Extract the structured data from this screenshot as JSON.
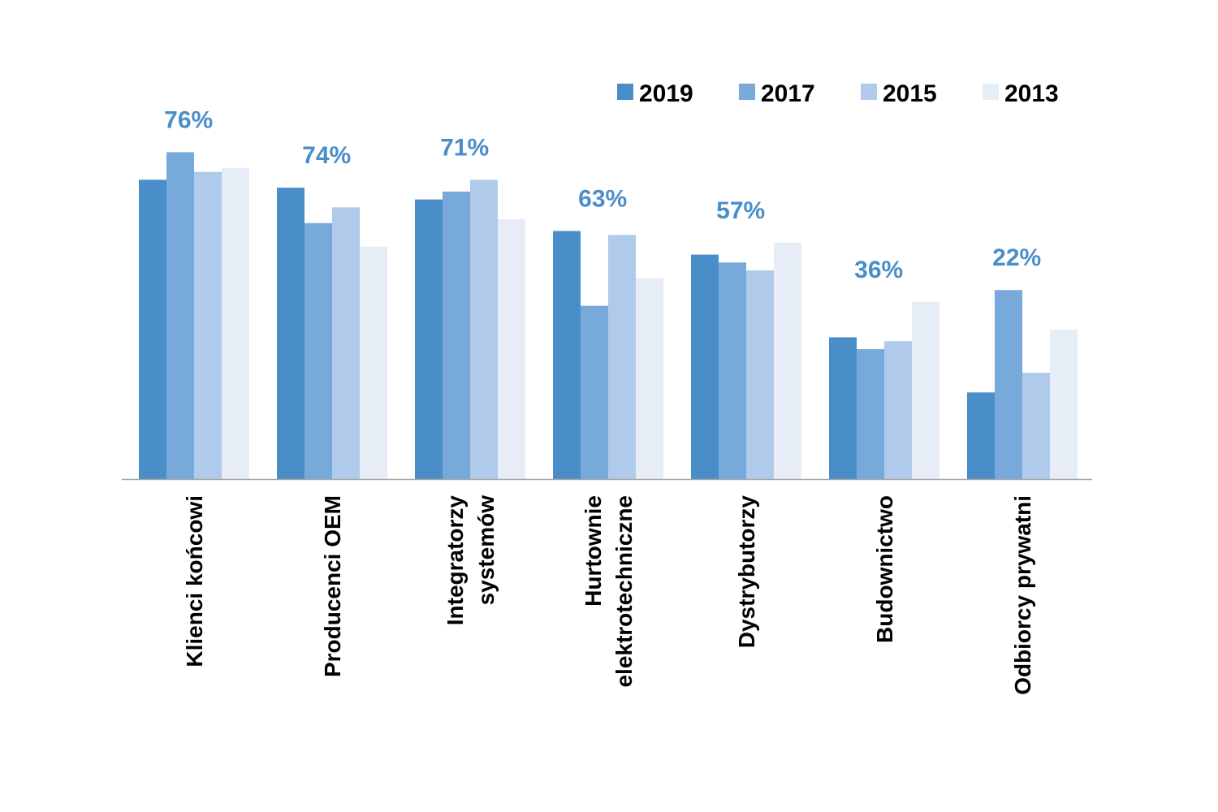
{
  "chart_data": {
    "type": "bar",
    "title": "",
    "xlabel": "",
    "ylabel": "",
    "ylim": [
      0,
      90
    ],
    "grid": false,
    "legend_position": "top-right",
    "categories": [
      [
        "Klienci końcowi"
      ],
      [
        "Producenci OEM"
      ],
      [
        "Integratorzy",
        "systemów"
      ],
      [
        "Hurtownie",
        "elektrotechniczne"
      ],
      [
        "Dystrybutorzy"
      ],
      [
        "Budownictwo"
      ],
      [
        "Odbiorcy prywatni"
      ]
    ],
    "series": [
      {
        "name": "2019",
        "color": "#4a8ec9",
        "values": [
          76,
          74,
          71,
          63,
          57,
          36,
          22
        ]
      },
      {
        "name": "2017",
        "color": "#77a9da",
        "values": [
          83,
          65,
          73,
          44,
          55,
          33,
          48
        ]
      },
      {
        "name": "2015",
        "color": "#afcaea",
        "values": [
          78,
          69,
          76,
          62,
          53,
          35,
          27
        ]
      },
      {
        "name": "2013",
        "color": "#e7edf7",
        "values": [
          79,
          59,
          66,
          51,
          60,
          45,
          38
        ]
      }
    ],
    "data_labels": [
      "76%",
      "74%",
      "71%",
      "63%",
      "57%",
      "36%",
      "22%"
    ],
    "data_label_color": "#4a8ec9",
    "axis_color": "#a6a6a6"
  }
}
